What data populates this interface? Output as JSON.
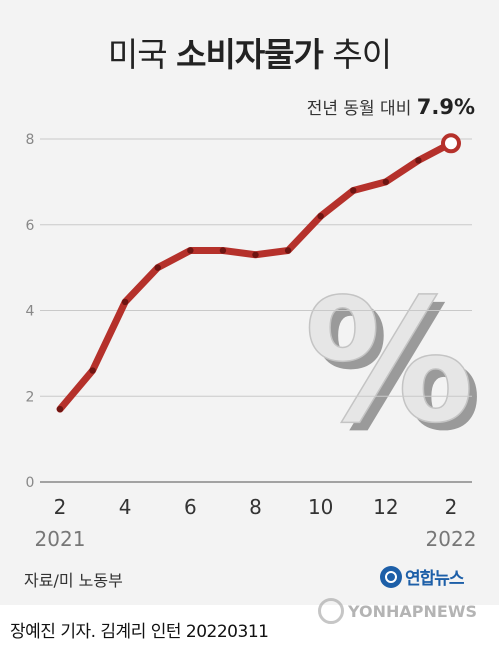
{
  "title": {
    "regular_1": "미국",
    "bold": "소비자물가",
    "regular_2": "추이"
  },
  "chart_data": {
    "type": "line",
    "x": [
      "2021-02",
      "2021-03",
      "2021-04",
      "2021-05",
      "2021-06",
      "2021-07",
      "2021-08",
      "2021-09",
      "2021-10",
      "2021-11",
      "2021-12",
      "2022-01",
      "2022-02"
    ],
    "values": [
      1.7,
      2.6,
      4.2,
      5.0,
      5.4,
      5.4,
      5.3,
      5.4,
      6.2,
      6.8,
      7.0,
      7.5,
      7.9
    ],
    "x_tick_labels": [
      "2",
      "4",
      "6",
      "8",
      "10",
      "12",
      "2"
    ],
    "x_tick_index": [
      0,
      2,
      4,
      6,
      8,
      10,
      12
    ],
    "year_labels": [
      "2021",
      "2022"
    ],
    "year_label_index": [
      0,
      12
    ],
    "y_ticks": [
      0,
      2,
      4,
      6,
      8
    ],
    "ylim": [
      0,
      8
    ],
    "grid": true,
    "line_color": "#b5312b",
    "annotation": {
      "prefix": "전년 동월 대비",
      "value": "7.9%"
    }
  },
  "source": "자료/미 노동부",
  "logo": "연합뉴스",
  "credit": "장예진 기자. 김계리 인턴   20220311",
  "watermark": "YONHAPNEWS"
}
